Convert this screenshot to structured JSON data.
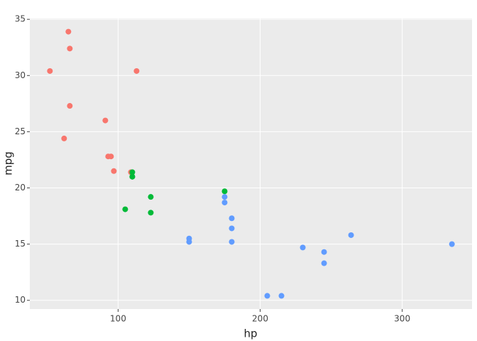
{
  "chart_data": {
    "type": "scatter",
    "xlabel": "hp",
    "ylabel": "mpg",
    "xlim": [
      37.85,
      349.15
    ],
    "ylim": [
      9.225,
      35.075
    ],
    "xticks": [
      100,
      200,
      300
    ],
    "yticks": [
      10,
      15,
      20,
      25,
      30,
      35
    ],
    "grid": true,
    "series": [
      {
        "color": "#F8766D",
        "x": [
          93,
          62,
          95,
          66,
          52,
          65,
          97,
          66,
          91,
          113,
          109
        ],
        "values": [
          22.8,
          24.4,
          22.8,
          32.4,
          30.4,
          33.9,
          21.5,
          27.3,
          26,
          30.4,
          21.4
        ]
      },
      {
        "color": "#00BA38",
        "x": [
          110,
          110,
          110,
          105,
          123,
          123,
          175
        ],
        "values": [
          21,
          21,
          21.4,
          18.1,
          19.2,
          17.8,
          19.7
        ]
      },
      {
        "color": "#619CFF",
        "x": [
          175,
          245,
          180,
          180,
          180,
          205,
          215,
          230,
          150,
          150,
          245,
          175,
          264,
          335
        ],
        "values": [
          18.7,
          14.3,
          16.4,
          17.3,
          15.2,
          10.4,
          10.4,
          14.7,
          15.5,
          15.2,
          13.3,
          19.2,
          15.8,
          15
        ]
      }
    ]
  }
}
